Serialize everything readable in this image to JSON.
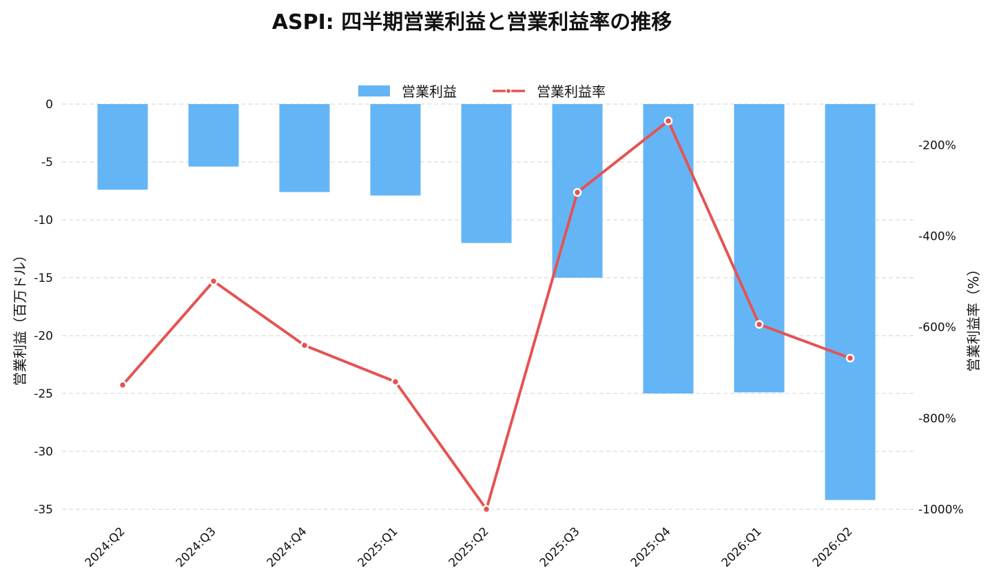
{
  "chart_data": {
    "type": "bar",
    "title": "ASPI: 四半期営業利益と営業利益率の推移",
    "categories": [
      "2024:Q2",
      "2024:Q3",
      "2024:Q4",
      "2025:Q1",
      "2025:Q2",
      "2025:Q3",
      "2025:Q4",
      "2026:Q1",
      "2026:Q2"
    ],
    "series": [
      {
        "name": "営業利益",
        "type": "bar",
        "axis": "left",
        "values": [
          -7.4,
          -5.4,
          -7.6,
          -7.9,
          -12.0,
          -15.0,
          -25.0,
          -24.9,
          -34.2
        ],
        "color": "#64b5f6"
      },
      {
        "name": "営業利益率",
        "type": "line",
        "axis": "right",
        "values": [
          -727,
          -499,
          -640,
          -720,
          -1000,
          -304,
          -147,
          -594,
          -668
        ],
        "color": "#e55353"
      }
    ],
    "ylabel": "営業利益（百万ドル）",
    "y2label": "営業利益率（%）",
    "ylim": [
      -35,
      0
    ],
    "y2lim": [
      -1000,
      -110
    ],
    "yticks": [
      "0",
      "-5",
      "-10",
      "-15",
      "-20",
      "-25",
      "-30",
      "-35"
    ],
    "ytick_values": [
      0,
      -5,
      -10,
      -15,
      -20,
      -25,
      -30,
      -35
    ],
    "y2ticks": [
      "-200%",
      "-400%",
      "-600%",
      "-800%",
      "-1000%"
    ],
    "y2tick_values": [
      -200,
      -400,
      -600,
      -800,
      -1000
    ],
    "grid": true,
    "legend_position": "top-center"
  }
}
